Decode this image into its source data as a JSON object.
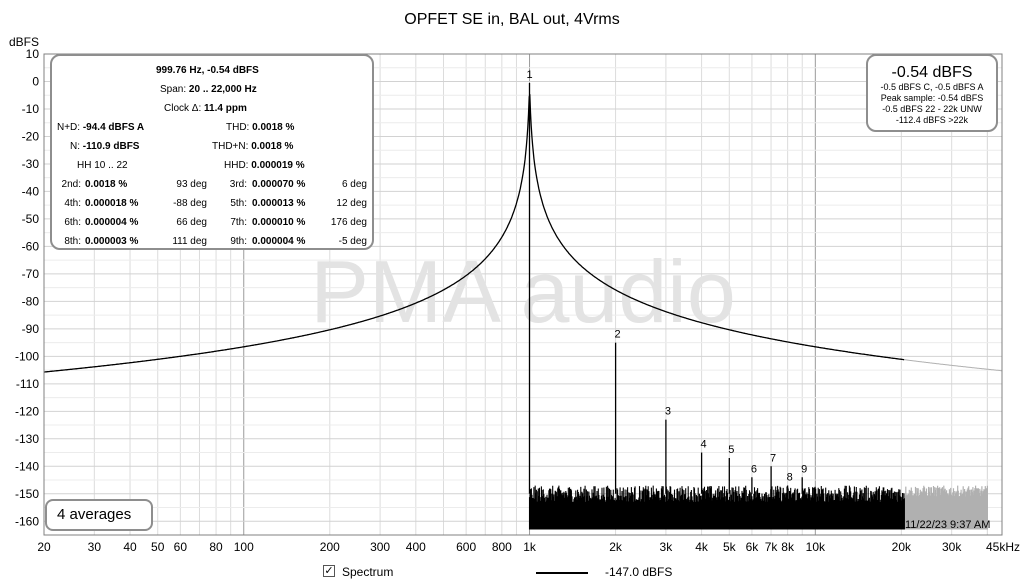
{
  "chart_data": {
    "type": "line",
    "title": "OPFET SE in, BAL out, 4Vrms",
    "ylabel": "dBFS",
    "xlabel": "",
    "xscale": "log",
    "xlim": [
      20,
      45000
    ],
    "ylim": [
      -165,
      10
    ],
    "grid": true,
    "x_ticks": [
      {
        "v": 20,
        "l": "20"
      },
      {
        "v": 30,
        "l": "30"
      },
      {
        "v": 40,
        "l": "40"
      },
      {
        "v": 50,
        "l": "50"
      },
      {
        "v": 60,
        "l": "60"
      },
      {
        "v": 80,
        "l": "80"
      },
      {
        "v": 100,
        "l": "100"
      },
      {
        "v": 200,
        "l": "200"
      },
      {
        "v": 300,
        "l": "300"
      },
      {
        "v": 400,
        "l": "400"
      },
      {
        "v": 600,
        "l": "600"
      },
      {
        "v": 800,
        "l": "800"
      },
      {
        "v": 1000,
        "l": "1k"
      },
      {
        "v": 2000,
        "l": "2k"
      },
      {
        "v": 3000,
        "l": "3k"
      },
      {
        "v": 4000,
        "l": "4k"
      },
      {
        "v": 5000,
        "l": "5k"
      },
      {
        "v": 6000,
        "l": "6k"
      },
      {
        "v": 7000,
        "l": "7k"
      },
      {
        "v": 8000,
        "l": "8k"
      },
      {
        "v": 10000,
        "l": "10k"
      },
      {
        "v": 20000,
        "l": "20k"
      },
      {
        "v": 30000,
        "l": "30k"
      },
      {
        "v": 45000,
        "l": "45kHz"
      }
    ],
    "y_ticks": [
      10,
      0,
      -10,
      -20,
      -30,
      -40,
      -50,
      -60,
      -70,
      -80,
      -90,
      -100,
      -110,
      -120,
      -130,
      -140,
      -150,
      -160
    ],
    "watermark": "PMA audio",
    "harmonics": [
      {
        "label": "1",
        "freq": 1000,
        "level": -0.54
      },
      {
        "label": "2",
        "freq": 2000,
        "level": -95
      },
      {
        "label": "3",
        "freq": 3000,
        "level": -123
      },
      {
        "label": "4",
        "freq": 4000,
        "level": -135
      },
      {
        "label": "5",
        "freq": 5000,
        "level": -137
      },
      {
        "label": "6",
        "freq": 6000,
        "level": -144
      },
      {
        "label": "7",
        "freq": 7000,
        "level": -140
      },
      {
        "label": "8",
        "freq": 8000,
        "level": -147
      },
      {
        "label": "9",
        "freq": 9000,
        "level": -144
      }
    ],
    "series": [
      {
        "name": "Spectrum",
        "noise_floor_dbfs": -150,
        "color": "#000000",
        "above_20k_color": "#b0b0b0"
      }
    ],
    "legend_value": "-147.0 dBFS"
  },
  "info": {
    "line1": "999.76 Hz, -0.54 dBFS",
    "span_label": "Span:",
    "span_value": "20 .. 22,000 Hz",
    "clock_label": "Clock Δ:",
    "clock_value": "11.4 ppm",
    "nd_label": "N+D:",
    "nd_value": "-94.4 dBFS A",
    "thd_label": "THD:",
    "thd_value": "0.0018 %",
    "n_label": "N:",
    "n_value": "-110.9 dBFS",
    "thdn_label": "THD+N:",
    "thdn_value": "0.0018 %",
    "hh_label": "HH 10 .. 22",
    "hhd_label": "HHD:",
    "hhd_value": "0.000019 %",
    "rows": [
      {
        "a_lab": "2nd:",
        "a_val": "0.0018 %",
        "a_deg": "93 deg",
        "b_lab": "3rd:",
        "b_val": "0.000070 %",
        "b_deg": "6 deg"
      },
      {
        "a_lab": "4th:",
        "a_val": "0.000018 %",
        "a_deg": "-88 deg",
        "b_lab": "5th:",
        "b_val": "0.000013 %",
        "b_deg": "12 deg"
      },
      {
        "a_lab": "6th:",
        "a_val": "0.000004 %",
        "a_deg": "66 deg",
        "b_lab": "7th:",
        "b_val": "0.000010 %",
        "b_deg": "176 deg"
      },
      {
        "a_lab": "8th:",
        "a_val": "0.000003 %",
        "a_deg": "111 deg",
        "b_lab": "9th:",
        "b_val": "0.000004 %",
        "b_deg": "-5 deg"
      }
    ]
  },
  "level_box": {
    "big": "-0.54 dBFS",
    "l1": "-0.5 dBFS C, -0.5 dBFS A",
    "l2": "Peak sample: -0.54 dBFS",
    "l3": "-0.5 dBFS 22 - 22k UNW",
    "l4": "-112.4 dBFS >22k"
  },
  "averages": "4 averages",
  "timestamp": "11/22/23 9:37 AM",
  "legend": {
    "checkbox": "✓",
    "label": "Spectrum"
  }
}
